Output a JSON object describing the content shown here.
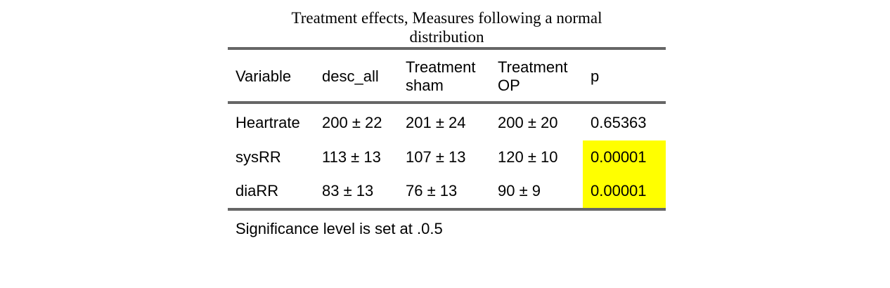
{
  "title": "Treatment effects, Measures following a normal distribution",
  "table": {
    "headers": {
      "variable": "Variable",
      "desc_all": "desc_all",
      "sham_line1": "Treatment",
      "sham_line2": "sham",
      "op_line1": "Treatment",
      "op_line2": "OP",
      "p": "p"
    },
    "rows": [
      {
        "variable": "Heartrate",
        "desc_all": "200 ± 22",
        "sham": "201 ± 24",
        "op": "200 ± 20",
        "p": "0.65363",
        "highlight": false
      },
      {
        "variable": "sysRR",
        "desc_all": "113 ± 13",
        "sham": "107 ± 13",
        "op": "120 ± 10",
        "p": "0.00001",
        "highlight": true
      },
      {
        "variable": "diaRR",
        "desc_all": "83 ± 13",
        "sham": "76 ± 13",
        "op": "90 ± 9",
        "p": "0.00001",
        "highlight": true
      }
    ]
  },
  "highlight_color": "#ffff00",
  "rule_color": "#666666",
  "footnote": "Significance level is set at .0.5"
}
